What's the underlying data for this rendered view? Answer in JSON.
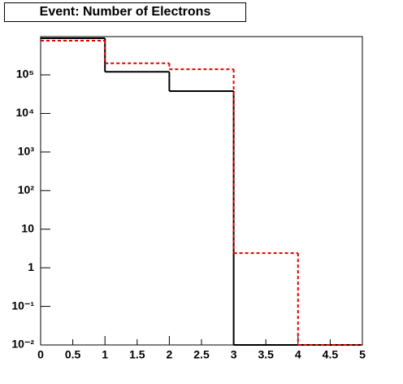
{
  "chart_data": {
    "type": "histogram",
    "title": "Event: Number of Electrons",
    "bins": [
      0,
      1,
      2,
      3,
      4,
      5
    ],
    "series": [
      {
        "color": "#000000",
        "dashed": false,
        "values": [
          890000,
          120000,
          38000,
          0,
          0
        ]
      },
      {
        "color": "#e00000",
        "dashed": true,
        "values": [
          770000,
          200000,
          140000,
          2.4,
          0
        ]
      }
    ],
    "log_y": true,
    "xlim": [
      0,
      5
    ],
    "xticks": [
      0,
      0.5,
      1,
      1.5,
      2,
      2.5,
      3,
      3.5,
      4,
      4.5,
      5
    ],
    "ylim": [
      0.01,
      980000
    ],
    "yticks": [
      {
        "value": 0.01,
        "label": "10⁻²"
      },
      {
        "value": 0.1,
        "label": "10⁻¹"
      },
      1,
      10,
      {
        "value": 100,
        "label": "10²"
      },
      {
        "value": 1000,
        "label": "10³"
      },
      {
        "value": 10000,
        "label": "10⁴"
      },
      {
        "value": 100000,
        "label": "10⁵"
      }
    ]
  }
}
